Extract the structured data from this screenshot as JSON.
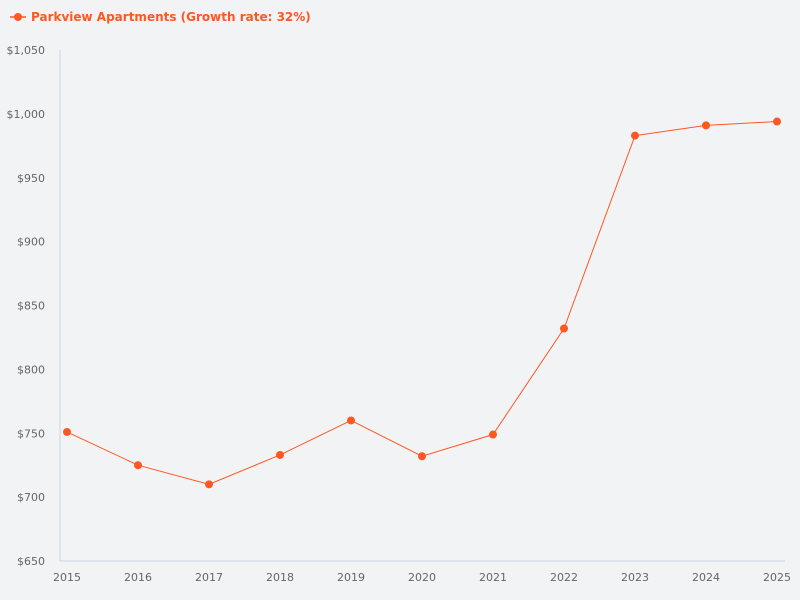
{
  "chart_data": {
    "type": "line",
    "title": "",
    "xlabel": "",
    "ylabel": "",
    "legend_position": "top-left",
    "grid": false,
    "ylim": [
      650,
      1050
    ],
    "y_ticks": [
      "$650",
      "$700",
      "$750",
      "$800",
      "$850",
      "$900",
      "$950",
      "$1,000",
      "$1,050"
    ],
    "y_tick_values": [
      650,
      700,
      750,
      800,
      850,
      900,
      950,
      1000,
      1050
    ],
    "categories": [
      "2015",
      "2016",
      "2017",
      "2018",
      "2019",
      "2020",
      "2021",
      "2022",
      "2023",
      "2024",
      "2025"
    ],
    "series": [
      {
        "name": "Parkview Apartments (Growth rate: 32%)",
        "color": "#ff5722",
        "values": [
          751,
          725,
          710,
          733,
          760,
          732,
          749,
          832,
          983,
          991,
          994
        ]
      }
    ]
  }
}
